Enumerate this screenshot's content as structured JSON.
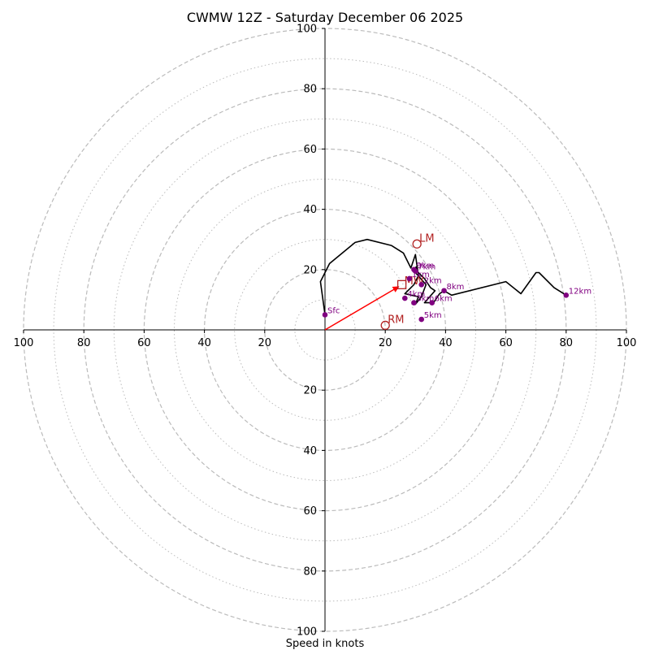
{
  "chart_data": {
    "type": "hodograph",
    "title": "CWMW 12Z - Saturday December 06 2025",
    "xlabel": "Speed in knots",
    "max_speed": 100,
    "ring_major": [
      20,
      40,
      60,
      80,
      100
    ],
    "ring_minor": [
      10,
      30,
      50,
      70,
      90
    ],
    "x_tick_labels": [
      "100",
      "80",
      "60",
      "40",
      "20",
      "20",
      "40",
      "60",
      "80",
      "100"
    ],
    "x_tick_values": [
      -100,
      -80,
      -60,
      -40,
      -20,
      20,
      40,
      60,
      80,
      100
    ],
    "y_tick_labels": [
      "100",
      "80",
      "60",
      "40",
      "20",
      "20",
      "40",
      "60",
      "80",
      "100"
    ],
    "y_tick_values": [
      100,
      80,
      60,
      40,
      20,
      -20,
      -40,
      -60,
      -80,
      -100
    ],
    "hodo_trace": [
      [
        0,
        5
      ],
      [
        -1.5,
        16
      ],
      [
        1.5,
        22
      ],
      [
        10,
        29
      ],
      [
        14,
        30
      ],
      [
        22,
        28
      ],
      [
        26,
        25.5
      ],
      [
        28.5,
        20.5
      ],
      [
        30,
        25
      ],
      [
        31,
        18
      ],
      [
        29.5,
        15
      ],
      [
        26.5,
        12
      ],
      [
        31,
        11
      ],
      [
        30,
        8.5
      ],
      [
        32,
        11
      ],
      [
        33.5,
        15
      ],
      [
        30,
        19
      ],
      [
        30.5,
        21
      ],
      [
        29,
        20
      ],
      [
        30,
        20
      ],
      [
        33,
        17
      ],
      [
        35,
        14
      ],
      [
        36.5,
        13
      ],
      [
        33,
        9
      ],
      [
        36,
        9
      ],
      [
        38,
        12
      ],
      [
        39.5,
        13
      ],
      [
        42,
        11.5
      ],
      [
        60,
        16
      ],
      [
        65,
        12
      ],
      [
        70,
        19
      ],
      [
        71,
        19
      ],
      [
        76,
        14
      ],
      [
        80,
        11.5
      ]
    ],
    "levels": [
      {
        "label": "Sfc",
        "u": 0,
        "v": 5
      },
      {
        "label": "1km",
        "u": 28,
        "v": 17
      },
      {
        "label": "2km",
        "u": 32,
        "v": 15
      },
      {
        "label": "3km",
        "u": 29.5,
        "v": 9
      },
      {
        "label": "4km",
        "u": 26.5,
        "v": 10.5
      },
      {
        "label": "5km",
        "u": 32,
        "v": 3.5
      },
      {
        "label": "6km",
        "u": 35.5,
        "v": 9
      },
      {
        "label": "7km",
        "u": 30,
        "v": 19.5
      },
      {
        "label": "8km",
        "u": 39.5,
        "v": 13
      },
      {
        "label": "9km",
        "u": 29.5,
        "v": 20
      },
      {
        "label": "12km",
        "u": 80,
        "v": 11.5
      }
    ],
    "storm_motion": {
      "mean_wind": {
        "label": "MW",
        "u": 25.5,
        "v": 15
      },
      "left_mover": {
        "label": "LM",
        "u": 30.5,
        "v": 28.5
      },
      "right_mover": {
        "label": "RM",
        "u": 20,
        "v": 1.5
      }
    },
    "colors": {
      "trace": "#000000",
      "level_marker": "#800080",
      "storm_marker": "#b22222",
      "arrow": "#ff0000",
      "grid": "#bbbbbb",
      "axis": "#000000"
    }
  }
}
